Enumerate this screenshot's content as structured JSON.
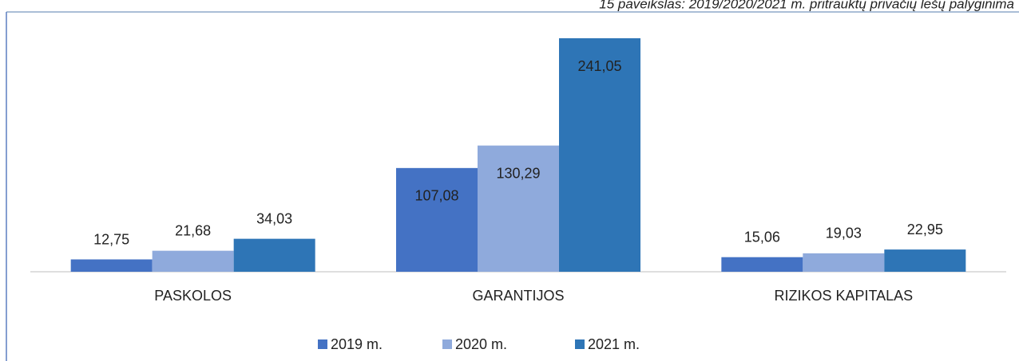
{
  "chart_data": {
    "type": "bar",
    "title": "15 paveikslas: 2019/2020/2021 m. pritrauktų privačių lėšų palyginima",
    "categories": [
      "PASKOLOS",
      "GARANTIJOS",
      "RIZIKOS KAPITALAS"
    ],
    "series": [
      {
        "name": "2019 m.",
        "color": "#4472c4",
        "values": [
          12.75,
          107.08,
          15.06
        ],
        "value_labels": [
          "12,75",
          "107,08",
          "15,06"
        ]
      },
      {
        "name": "2020 m.",
        "color": "#8faadc",
        "values": [
          21.68,
          130.29,
          19.03
        ],
        "value_labels": [
          "21,68",
          "130,29",
          "19,03"
        ]
      },
      {
        "name": "2021 m.",
        "color": "#2e75b6",
        "values": [
          34.03,
          241.05,
          22.95
        ],
        "value_labels": [
          "34,03",
          "241,05",
          "22,95"
        ]
      }
    ],
    "legend": "bottom"
  }
}
